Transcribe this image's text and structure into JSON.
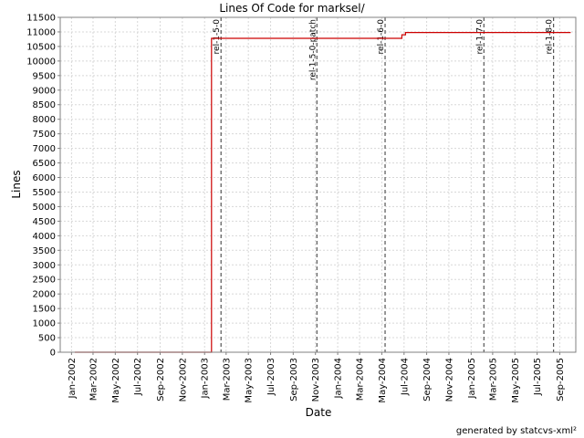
{
  "footer_text": "generated by statcvs-xml²",
  "chart_data": {
    "type": "line",
    "title": "Lines Of Code for marksel/",
    "xlabel": "Date",
    "ylabel": "Lines",
    "x_axis": "date",
    "xlim": [
      "2001-12-01",
      "2005-10-15"
    ],
    "ylim": [
      0,
      11500
    ],
    "y_ticks": [
      0,
      500,
      1000,
      1500,
      2000,
      2500,
      3000,
      3500,
      4000,
      4500,
      5000,
      5500,
      6000,
      6500,
      7000,
      7500,
      8000,
      8500,
      9000,
      9500,
      10000,
      10500,
      11000,
      11500
    ],
    "x_ticks": [
      {
        "label": "Jan-2002",
        "date": "2002-01-01"
      },
      {
        "label": "Mar-2002",
        "date": "2002-03-01"
      },
      {
        "label": "May-2002",
        "date": "2002-05-01"
      },
      {
        "label": "Jul-2002",
        "date": "2002-07-01"
      },
      {
        "label": "Sep-2002",
        "date": "2002-09-01"
      },
      {
        "label": "Nov-2002",
        "date": "2002-11-01"
      },
      {
        "label": "Jan-2003",
        "date": "2003-01-01"
      },
      {
        "label": "Mar-2003",
        "date": "2003-03-01"
      },
      {
        "label": "May-2003",
        "date": "2003-05-01"
      },
      {
        "label": "Jul-2003",
        "date": "2003-07-01"
      },
      {
        "label": "Sep-2003",
        "date": "2003-09-01"
      },
      {
        "label": "Nov-2003",
        "date": "2003-11-01"
      },
      {
        "label": "Jan-2004",
        "date": "2004-01-01"
      },
      {
        "label": "Mar-2004",
        "date": "2004-03-01"
      },
      {
        "label": "May-2004",
        "date": "2004-05-01"
      },
      {
        "label": "Jul-2004",
        "date": "2004-07-01"
      },
      {
        "label": "Sep-2004",
        "date": "2004-09-01"
      },
      {
        "label": "Nov-2004",
        "date": "2004-11-01"
      },
      {
        "label": "Jan-2005",
        "date": "2005-01-01"
      },
      {
        "label": "Mar-2005",
        "date": "2005-03-01"
      },
      {
        "label": "May-2005",
        "date": "2005-05-01"
      },
      {
        "label": "Jul-2005",
        "date": "2005-07-01"
      },
      {
        "label": "Sep-2005",
        "date": "2005-09-01"
      }
    ],
    "series": [
      {
        "color": "#cc0000",
        "step": true,
        "points": [
          {
            "x": "2002-01-10",
            "y": 0
          },
          {
            "x": "2003-01-20",
            "y": 0
          },
          {
            "x": "2003-01-20",
            "y": 10780
          },
          {
            "x": "2004-06-25",
            "y": 10780
          },
          {
            "x": "2004-06-25",
            "y": 10900
          },
          {
            "x": "2004-07-05",
            "y": 10900
          },
          {
            "x": "2004-07-05",
            "y": 10980
          },
          {
            "x": "2005-10-01",
            "y": 10980
          }
        ]
      }
    ],
    "annotations": [
      {
        "label": "rel-1-5-0",
        "date": "2003-02-15"
      },
      {
        "label": "rel-1-5-0-patch",
        "date": "2003-11-05"
      },
      {
        "label": "rel-1-6-0",
        "date": "2004-05-10"
      },
      {
        "label": "rel-1-7-0",
        "date": "2005-02-05"
      },
      {
        "label": "rel-1-8-0",
        "date": "2005-08-15"
      }
    ],
    "grid": true,
    "colors": {
      "grid": "#d8d8d8",
      "axis": "#808080",
      "annotation": "#555555"
    }
  }
}
